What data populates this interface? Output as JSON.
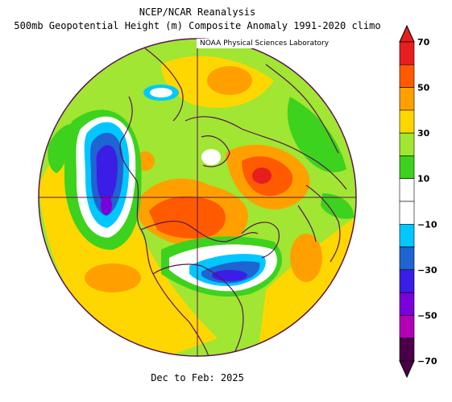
{
  "header": {
    "title_line1": "NCEP/NCAR Reanalysis",
    "title_line2": "500mb Geopotential Height (m) Composite Anomaly 1991-2020 climo"
  },
  "credit": "NOAA Physical Sciences Laboratory",
  "footer": "Dec to Feb: 2025",
  "projection": "north-polar-stereographic",
  "colors": {
    "neg70": "#4a0048",
    "neg60": "#b400b4",
    "neg50": "#7a00dc",
    "neg40": "#3a1ee6",
    "neg30": "#1e64d2",
    "neg20": "#00c8ff",
    "neg10": "#ffffff",
    "pos10": "#ffffff",
    "pos20": "#3cd21e",
    "pos30": "#a0e632",
    "pos40": "#ffd700",
    "pos50": "#ffa000",
    "pos60": "#ff5a00",
    "pos70": "#e61e1e",
    "coast": "#5a1450"
  },
  "colorbar": {
    "labels": [
      "70",
      "50",
      "30",
      "10",
      "−10",
      "−30",
      "−50",
      "−70"
    ],
    "bands": [
      {
        "color": "#e61e1e"
      },
      {
        "color": "#ff5a00"
      },
      {
        "color": "#ffa000"
      },
      {
        "color": "#ffd700"
      },
      {
        "color": "#a0e632"
      },
      {
        "color": "#3cd21e"
      },
      {
        "color": "#ffffff"
      },
      {
        "color": "#ffffff"
      },
      {
        "color": "#00c8ff"
      },
      {
        "color": "#1e64d2"
      },
      {
        "color": "#3a1ee6"
      },
      {
        "color": "#7a00dc"
      },
      {
        "color": "#b400b4"
      },
      {
        "color": "#4a0048"
      }
    ]
  }
}
